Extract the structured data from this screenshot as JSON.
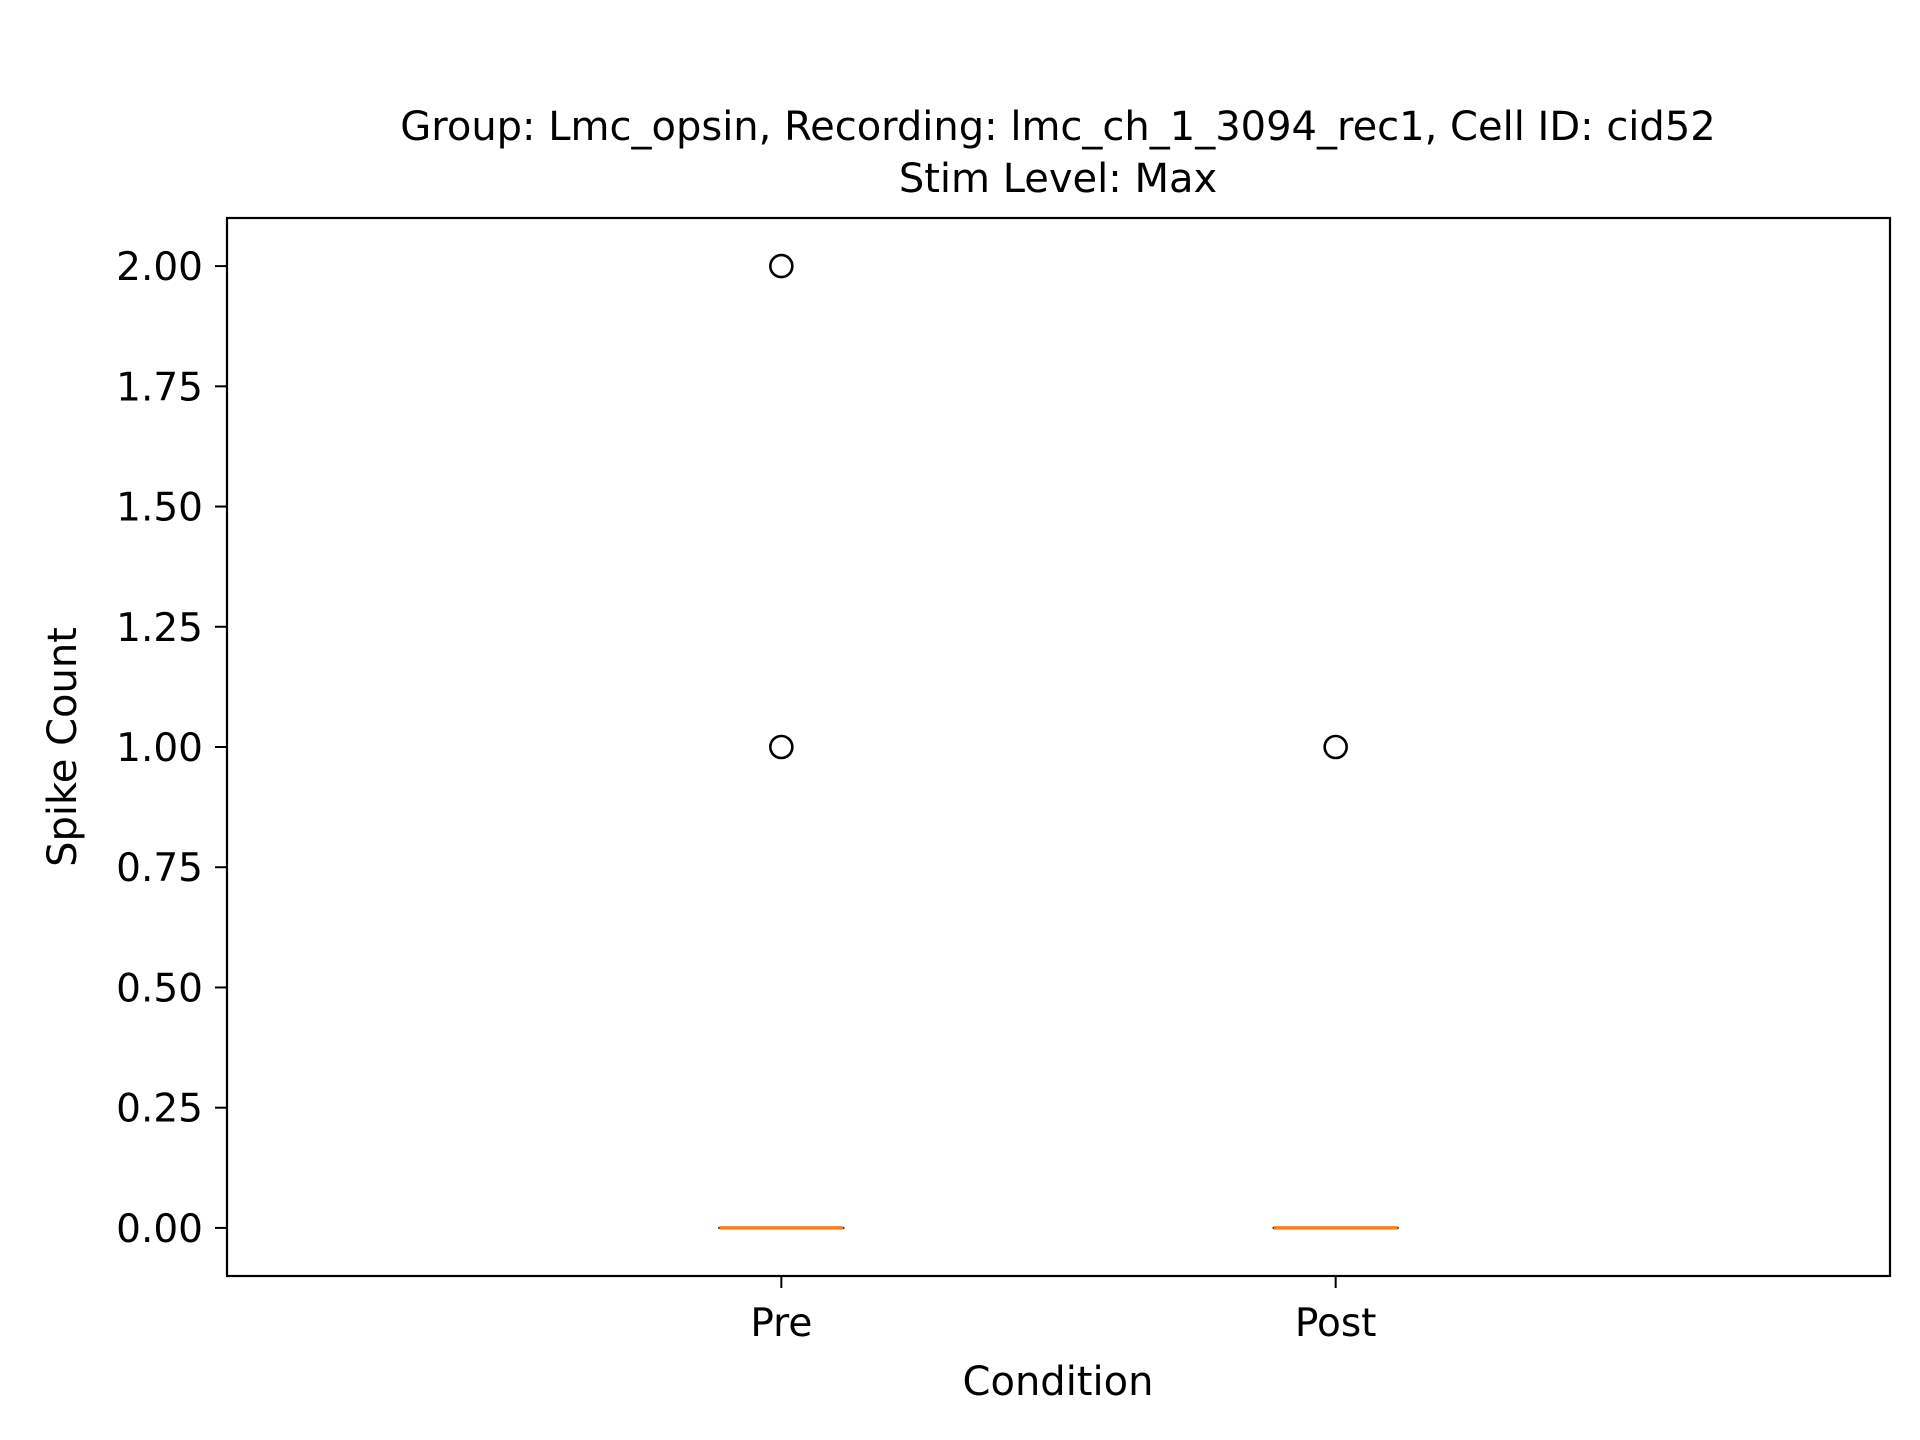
{
  "chart_data": {
    "type": "box",
    "title": "Group: Lmc_opsin, Recording: lmc_ch_1_3094_rec1, Cell ID: cid52",
    "subtitle": "Stim Level: Max",
    "xlabel": "Condition",
    "ylabel": "Spike Count",
    "categories": [
      "Pre",
      "Post"
    ],
    "ylim": [
      -0.1,
      2.1
    ],
    "yticks": [
      0.0,
      0.25,
      0.5,
      0.75,
      1.0,
      1.25,
      1.5,
      1.75,
      2.0
    ],
    "ytick_labels": [
      "0.00",
      "0.25",
      "0.50",
      "0.75",
      "1.00",
      "1.25",
      "1.50",
      "1.75",
      "2.00"
    ],
    "grid": false,
    "boxes": [
      {
        "category": "Pre",
        "median": 0.0,
        "q1": 0.0,
        "q3": 0.0,
        "whisker_low": 0.0,
        "whisker_high": 0.0,
        "fliers": [
          1.0,
          2.0
        ]
      },
      {
        "category": "Post",
        "median": 0.0,
        "q1": 0.0,
        "q3": 0.0,
        "whisker_low": 0.0,
        "whisker_high": 0.0,
        "fliers": [
          1.0
        ]
      }
    ],
    "colors": {
      "median": "#ff7f0e",
      "box": "#000000",
      "flier": "#000000"
    }
  }
}
